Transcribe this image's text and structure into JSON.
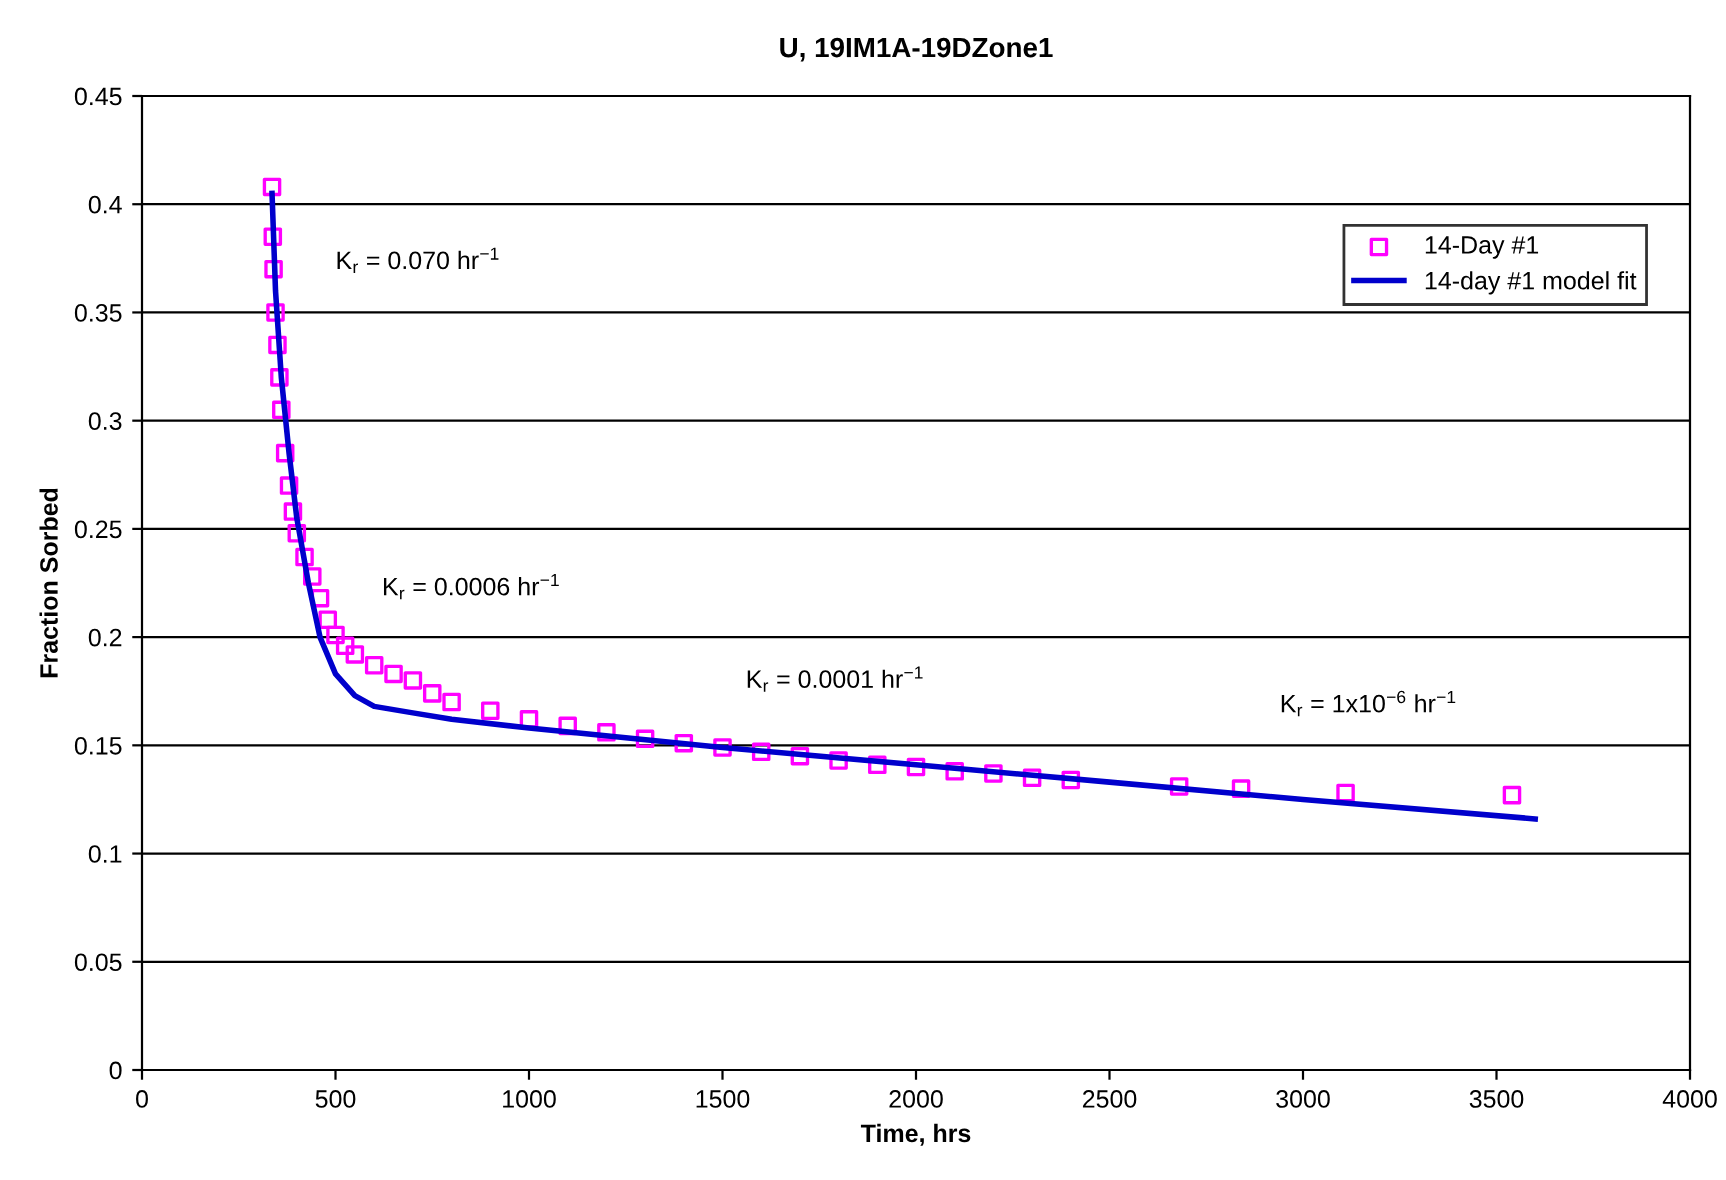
{
  "chart_data": {
    "type": "scatter",
    "title": "U, 19IM1A-19DZone1",
    "xlabel": "Time, hrs",
    "ylabel": "Fraction Sorbed",
    "xlim": [
      0,
      4000
    ],
    "xticks": [
      0,
      500,
      1000,
      1500,
      2000,
      2500,
      3000,
      3500,
      4000
    ],
    "ylim": [
      0,
      0.45
    ],
    "yticks": [
      0,
      0.05,
      0.1,
      0.15,
      0.2,
      0.25,
      0.3,
      0.35,
      0.4,
      0.45
    ],
    "grid": "y",
    "legend": "top right",
    "series": [
      {
        "name": "14-Day #1",
        "marker": "square",
        "color": "#ff00ff",
        "x": [
          336,
          338,
          340,
          345,
          350,
          355,
          360,
          370,
          380,
          390,
          400,
          420,
          440,
          460,
          480,
          500,
          525,
          550,
          600,
          650,
          700,
          750,
          800,
          900,
          1000,
          1100,
          1200,
          1300,
          1400,
          1500,
          1600,
          1700,
          1800,
          1900,
          2000,
          2100,
          2200,
          2300,
          2400,
          2680,
          2840,
          3110,
          3540
        ],
        "values": [
          0.408,
          0.385,
          0.37,
          0.35,
          0.335,
          0.32,
          0.305,
          0.285,
          0.27,
          0.258,
          0.248,
          0.237,
          0.228,
          0.218,
          0.208,
          0.201,
          0.196,
          0.192,
          0.187,
          0.183,
          0.18,
          0.174,
          0.17,
          0.166,
          0.162,
          0.159,
          0.156,
          0.153,
          0.151,
          0.149,
          0.147,
          0.145,
          0.143,
          0.141,
          0.14,
          0.138,
          0.137,
          0.135,
          0.134,
          0.131,
          0.13,
          0.128,
          0.127
        ]
      },
      {
        "name": "14-day #1 model fit",
        "type": "line",
        "line_style": "solid",
        "color": "#0000cc",
        "x": [
          336,
          345,
          360,
          380,
          400,
          430,
          460,
          500,
          550,
          600,
          700,
          800,
          1000,
          1500,
          2000,
          2500,
          3000,
          3600
        ],
        "values": [
          0.405,
          0.36,
          0.32,
          0.285,
          0.255,
          0.225,
          0.2,
          0.183,
          0.173,
          0.168,
          0.165,
          0.162,
          0.158,
          0.149,
          0.141,
          0.133,
          0.125,
          0.116
        ]
      }
    ],
    "annotations": [
      "K$_{r}$ = 0.070 hr$^{−1}$",
      "K$_{r}$ = 0.0006 hr$^{−1}$",
      "K$_{r}$ = 0.0001 hr$^{−1}$",
      "K$_{r}$ = 1x10$^{−6}$ hr$^{−1}$"
    ]
  }
}
